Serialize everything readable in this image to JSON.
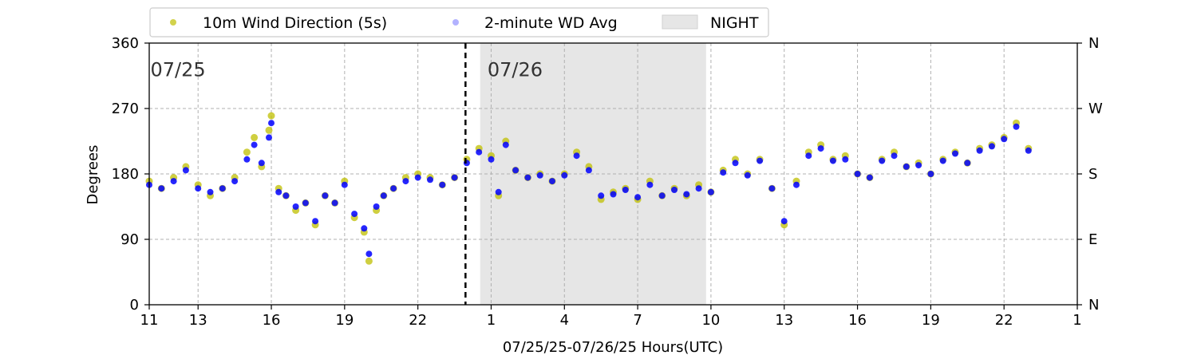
{
  "chart_data": {
    "type": "scatter",
    "title": "",
    "xlabel": "07/25/25-07/26/25  Hours(UTC)",
    "ylabel": "Degrees",
    "xlim": [
      11,
      49
    ],
    "ylim": [
      0,
      360
    ],
    "x_ticks": [
      {
        "value": 11,
        "label": "11"
      },
      {
        "value": 13,
        "label": "13"
      },
      {
        "value": 16,
        "label": "16"
      },
      {
        "value": 19,
        "label": "19"
      },
      {
        "value": 22,
        "label": "22"
      },
      {
        "value": 25,
        "label": "1"
      },
      {
        "value": 28,
        "label": "4"
      },
      {
        "value": 31,
        "label": "7"
      },
      {
        "value": 34,
        "label": "10"
      },
      {
        "value": 37,
        "label": "13"
      },
      {
        "value": 40,
        "label": "16"
      },
      {
        "value": 43,
        "label": "19"
      },
      {
        "value": 46,
        "label": "22"
      },
      {
        "value": 49,
        "label": "1"
      }
    ],
    "y_ticks": [
      0,
      90,
      180,
      270,
      360
    ],
    "y2_ticks": [
      {
        "value": 0,
        "label": "N"
      },
      {
        "value": 90,
        "label": "E"
      },
      {
        "value": 180,
        "label": "S"
      },
      {
        "value": 270,
        "label": "W"
      },
      {
        "value": 360,
        "label": "N"
      }
    ],
    "grid": true,
    "legend_position": "top-left, above plot",
    "legend": [
      {
        "label": "10m Wind Direction (5s)",
        "type": "marker",
        "color": "#bfbf00"
      },
      {
        "label": "2-minute WD Avg",
        "type": "marker",
        "color": "#0000ff"
      },
      {
        "label": "NIGHT",
        "type": "patch",
        "color": "#e6e6e6"
      }
    ],
    "night_span": [
      24.55,
      33.8
    ],
    "day_divider_x": 23.95,
    "date_labels": [
      {
        "x": 11.05,
        "y": 323,
        "text": "07/25"
      },
      {
        "x": 24.85,
        "y": 323,
        "text": "07/26"
      }
    ],
    "series": [
      {
        "name": "10m Wind Direction (5s)",
        "color": "#bfbf00",
        "x": [
          11.0,
          11.5,
          12.0,
          12.5,
          13.0,
          13.5,
          14.0,
          14.5,
          15.0,
          15.3,
          15.6,
          15.9,
          16.0,
          16.3,
          16.6,
          17.0,
          17.4,
          17.8,
          18.2,
          18.6,
          19.0,
          19.4,
          19.8,
          20.0,
          20.3,
          20.6,
          21.0,
          21.5,
          22.0,
          22.5,
          23.0,
          23.5,
          24.0,
          24.5,
          25.0,
          25.3,
          25.6,
          26.0,
          26.5,
          27.0,
          27.5,
          28.0,
          28.5,
          29.0,
          29.5,
          30.0,
          30.5,
          31.0,
          31.5,
          32.0,
          32.5,
          33.0,
          33.5,
          34.0,
          34.5,
          35.0,
          35.5,
          36.0,
          36.5,
          37.0,
          37.5,
          38.0,
          38.5,
          39.0,
          39.5,
          40.0,
          40.5,
          41.0,
          41.5,
          42.0,
          42.5,
          43.0,
          43.5,
          44.0,
          44.5,
          45.0,
          45.5,
          46.0,
          46.5,
          47.0
        ],
        "values": [
          170,
          160,
          175,
          190,
          165,
          150,
          160,
          175,
          210,
          230,
          190,
          240,
          260,
          160,
          150,
          130,
          140,
          110,
          150,
          140,
          170,
          120,
          100,
          60,
          130,
          150,
          160,
          175,
          180,
          175,
          165,
          175,
          200,
          215,
          205,
          150,
          225,
          185,
          175,
          180,
          170,
          180,
          210,
          190,
          145,
          155,
          160,
          145,
          170,
          150,
          160,
          150,
          165,
          155,
          185,
          200,
          180,
          200,
          160,
          110,
          170,
          210,
          220,
          200,
          205,
          180,
          175,
          200,
          210,
          190,
          195,
          180,
          200,
          210,
          195,
          215,
          220,
          230,
          250,
          215
        ]
      },
      {
        "name": "2-minute WD Avg",
        "color": "#0000ff",
        "x": [
          11.0,
          11.5,
          12.0,
          12.5,
          13.0,
          13.5,
          14.0,
          14.5,
          15.0,
          15.3,
          15.6,
          15.9,
          16.0,
          16.3,
          16.6,
          17.0,
          17.4,
          17.8,
          18.2,
          18.6,
          19.0,
          19.4,
          19.8,
          20.0,
          20.3,
          20.6,
          21.0,
          21.5,
          22.0,
          22.5,
          23.0,
          23.5,
          24.0,
          24.5,
          25.0,
          25.3,
          25.6,
          26.0,
          26.5,
          27.0,
          27.5,
          28.0,
          28.5,
          29.0,
          29.5,
          30.0,
          30.5,
          31.0,
          31.5,
          32.0,
          32.5,
          33.0,
          33.5,
          34.0,
          34.5,
          35.0,
          35.5,
          36.0,
          36.5,
          37.0,
          37.5,
          38.0,
          38.5,
          39.0,
          39.5,
          40.0,
          40.5,
          41.0,
          41.5,
          42.0,
          42.5,
          43.0,
          43.5,
          44.0,
          44.5,
          45.0,
          45.5,
          46.0,
          46.5,
          47.0
        ],
        "values": [
          165,
          160,
          170,
          185,
          160,
          155,
          160,
          170,
          200,
          220,
          195,
          230,
          250,
          155,
          150,
          135,
          140,
          115,
          150,
          140,
          165,
          125,
          105,
          70,
          135,
          150,
          160,
          170,
          175,
          172,
          165,
          175,
          195,
          210,
          200,
          155,
          220,
          185,
          175,
          178,
          170,
          178,
          205,
          185,
          150,
          152,
          158,
          148,
          165,
          150,
          158,
          152,
          160,
          155,
          182,
          195,
          178,
          198,
          160,
          115,
          165,
          205,
          215,
          198,
          200,
          180,
          175,
          198,
          205,
          190,
          192,
          180,
          198,
          208,
          195,
          212,
          218,
          228,
          245,
          212
        ]
      }
    ]
  }
}
